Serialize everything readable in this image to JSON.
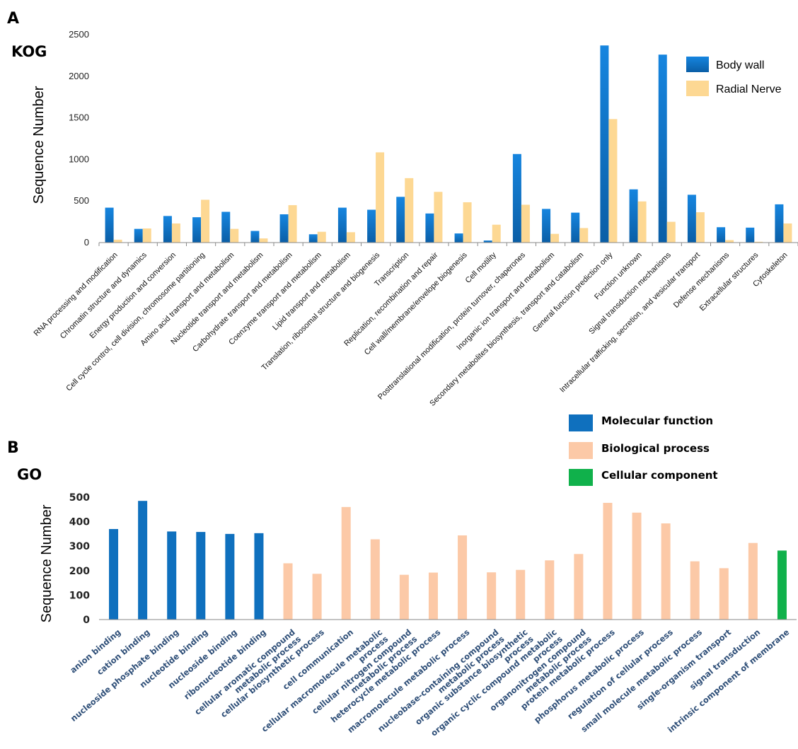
{
  "panel_a": {
    "letter": "A",
    "label": "KOG"
  },
  "panel_b": {
    "letter": "B",
    "label": "GO"
  },
  "colors": {
    "body_wall": "#0f72c8",
    "radial_nerve": "#fdd893",
    "molecular_function": "#0f70be",
    "biological_process": "#fcc9a7",
    "cellular_component": "#10b14b",
    "axis": "#8a8a8a"
  },
  "chart_data": [
    {
      "type": "bar",
      "title": "",
      "xlabel": "",
      "ylabel": "Sequence Number",
      "ylim": [
        0,
        2500
      ],
      "yticks": [
        0,
        500,
        1000,
        1500,
        2000,
        2500
      ],
      "legend": "top-right",
      "grid": false,
      "categories": [
        "RNA processing and modification",
        "Chromatin structure and dynamics",
        "Energy production and conversion",
        "Cell cycle control, cell division, chromosome partitioning",
        "Amino acid transport and metabolism",
        "Nucleotide transport and metabolism",
        "Carbohydrate transport and metabolism",
        "Coenzyme transport and metabolism",
        "Lipid transport and metabolism",
        "Translation, ribosomal structure and biogenesis",
        "Transcription",
        "Replication, recombination and repair",
        "Cell wall/membrane/envelope biogenesis",
        "Cell motility",
        "Posttranslational modification, protein turnover, chaperones",
        "Inorganic ion transport and metabolism",
        "Secondary metabolites biosynthesis, transport and catabolism",
        "General function prediction only",
        "Function unknown",
        "Signal transduction mechanisms",
        "Intracellular trafficking, secretion, and vesicular transport",
        "Defense mechanisms",
        "Extracellular structures",
        "Cytoskeleton"
      ],
      "series": [
        {
          "name": "Body wall",
          "values": [
            420,
            165,
            320,
            305,
            370,
            140,
            340,
            100,
            420,
            395,
            550,
            350,
            110,
            25,
            1065,
            405,
            360,
            2370,
            640,
            2260,
            575,
            185,
            180,
            460
          ]
        },
        {
          "name": "Radial Nerve",
          "values": [
            35,
            170,
            230,
            515,
            165,
            50,
            450,
            130,
            125,
            1085,
            775,
            610,
            485,
            215,
            455,
            105,
            175,
            1485,
            495,
            250,
            365,
            30,
            10,
            230
          ]
        }
      ]
    },
    {
      "type": "bar",
      "title": "",
      "xlabel": "",
      "ylabel": "Sequence Number",
      "ylim": [
        0,
        500
      ],
      "yticks": [
        0,
        100,
        200,
        300,
        400,
        500
      ],
      "legend": "top-right",
      "grid": false,
      "series_names": [
        "Molecular function",
        "Biological process",
        "Cellular component"
      ],
      "categories": [
        "anion binding",
        "cation binding",
        "nucleoside phosphate binding",
        "nucleotide binding",
        "nucleoside binding",
        "ribonucleotide binding",
        "cellular aromatic compound metabolic process",
        "cellular biosynthetic process",
        "cell communication",
        "cellular macromolecule metabolic process",
        "cellular nitrogen compound metabolic process",
        "heterocycle metabolic process",
        "macromolecule metabolic process",
        "nucleobase-containing compound metabolic process",
        "organic substance biosynthetic process",
        "organic cyclic compound metabolic process",
        "organonitrogen compound metabolic process",
        "protein metabolic process",
        "phosphorus metabolic process",
        "regulation of cellular process",
        "small molecule metabolic process",
        "single-organism transport",
        "signal transduction",
        "intrinsic component of membrane"
      ],
      "category_labels": [
        [
          "anion binding"
        ],
        [
          "cation binding"
        ],
        [
          "nucleoside phosphate binding"
        ],
        [
          "nucleotide binding"
        ],
        [
          "nucleoside binding"
        ],
        [
          "ribonucleotide binding"
        ],
        [
          "cellular aromatic compound",
          "metabolic process"
        ],
        [
          "cellular biosynthetic process"
        ],
        [
          "cell communication"
        ],
        [
          "cellular macromolecule metabolic",
          "process"
        ],
        [
          "cellular nitrogen compound",
          "metabolic process"
        ],
        [
          "heterocycle metabolic process"
        ],
        [
          "macromolecule metabolic process"
        ],
        [
          "nucleobase-containing compound",
          "metabolic process"
        ],
        [
          "organic substance biosynthetic",
          "process"
        ],
        [
          "organic cyclic compound metabolic",
          "process"
        ],
        [
          "organonitrogen compound",
          "metabolic process"
        ],
        [
          "protein metabolic process"
        ],
        [
          "phosphorus metabolic process"
        ],
        [
          "regulation of cellular process"
        ],
        [
          "small molecule metabolic process"
        ],
        [
          "single-organism transport"
        ],
        [
          "signal transduction"
        ],
        [
          "intrinsic component of membrane"
        ]
      ],
      "values": [
        370,
        485,
        360,
        358,
        350,
        353,
        230,
        187,
        460,
        328,
        183,
        192,
        344,
        193,
        203,
        242,
        268,
        477,
        437,
        393,
        238,
        210,
        313,
        282
      ],
      "groups": [
        "Molecular function",
        "Molecular function",
        "Molecular function",
        "Molecular function",
        "Molecular function",
        "Molecular function",
        "Biological process",
        "Biological process",
        "Biological process",
        "Biological process",
        "Biological process",
        "Biological process",
        "Biological process",
        "Biological process",
        "Biological process",
        "Biological process",
        "Biological process",
        "Biological process",
        "Biological process",
        "Biological process",
        "Biological process",
        "Biological process",
        "Biological process",
        "Cellular component"
      ]
    }
  ]
}
